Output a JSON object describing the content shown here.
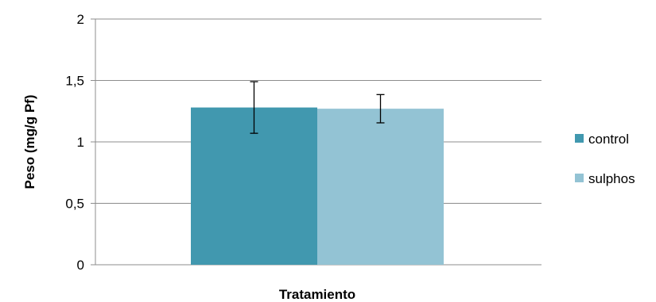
{
  "chart_data": {
    "type": "bar",
    "title": "",
    "xlabel": "Tratamiento",
    "ylabel": "Peso (mg/g Pf)",
    "ylim": [
      0,
      2
    ],
    "yticks": [
      0,
      0.5,
      1,
      1.5,
      2
    ],
    "ytick_labels": [
      "0",
      "0,5",
      "1",
      "1,5",
      "2"
    ],
    "grid": true,
    "legend_position": "right",
    "series": [
      {
        "name": "control",
        "values": [
          1.28
        ],
        "error": [
          0.21
        ],
        "color": "#4198AF"
      },
      {
        "name": "sulphos",
        "values": [
          1.27
        ],
        "error": [
          0.115
        ],
        "color": "#93C3D4"
      }
    ]
  }
}
